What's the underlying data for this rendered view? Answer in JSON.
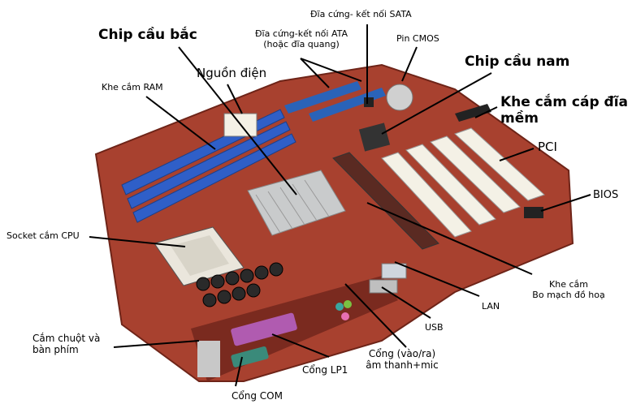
{
  "labels": {
    "sata": "Đĩa cứng- kết nối SATA",
    "north_bridge": "Chip cầu bắc",
    "ata": "Đĩa cứng-kết nối ATA\n(hoặc đĩa quang)",
    "cmos": "Pin CMOS",
    "power": "Nguồn điện",
    "south_bridge": "Chip cầu nam",
    "ram": "Khe cắm RAM",
    "floppy": "Khe cắm cáp đĩa\nmềm",
    "pci": "PCI",
    "bios": "BIOS",
    "cpu": "Socket cắm CPU",
    "agp": "Khe cắm\nBo mạch đồ hoạ",
    "lan": "LAN",
    "usb": "USB",
    "ps2": "Cắm chuột và\nbàn phím",
    "audio": "Cổng (vào/ra)\nâm thanh+mic",
    "lpt": "Cổng LP1",
    "com": "Cổng COM"
  },
  "colors": {
    "board": "#a8412f",
    "board_dark": "#7a2a1f",
    "ram_slot": "#2f5fc8",
    "pci_slot": "#f4f1e6",
    "heatsink": "#c9cbcc",
    "connector_blue": "#2a63b8",
    "port_purple": "#b05bb0",
    "port_teal": "#3aa6a0"
  }
}
